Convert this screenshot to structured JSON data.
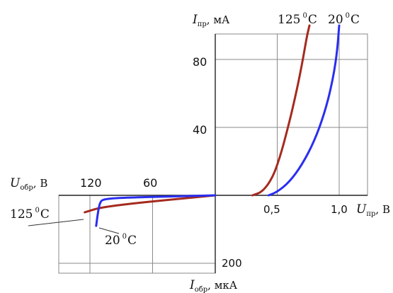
{
  "chart_data": {
    "type": "line",
    "subtype": "diode I–V characteristic (forward and reverse branches)",
    "grid": true,
    "colors": {
      "hot": "#a52a1e",
      "cold": "#2a2ef0",
      "axis": "#222222",
      "grid": "#8a8a8a",
      "leader": "#333333"
    },
    "labels": {
      "i_fwd_letter": "I",
      "i_fwd_sub": "пр",
      "i_fwd_unit": ", мА",
      "u_fwd_letter": "U",
      "u_fwd_sub": "пр",
      "u_fwd_unit": ", В",
      "u_rev_letter": "U",
      "u_rev_sub": "обр",
      "u_rev_unit": ", В",
      "i_rev_letter": "I",
      "i_rev_sub": "обр",
      "i_rev_unit": ", мкА",
      "temp_125": "125",
      "temp_20": "20",
      "degree_sup": "0",
      "celsius": "C"
    },
    "ticks": {
      "forward_current": [
        "80",
        "40"
      ],
      "forward_voltage": [
        "0,5",
        "1,0"
      ],
      "reverse_voltage": [
        "120",
        "60"
      ],
      "reverse_current": [
        "200"
      ]
    },
    "forward": {
      "x_unit": "В",
      "y_unit": "мА",
      "xlim": [
        0,
        1.2
      ],
      "ylim": [
        0,
        100
      ],
      "series": [
        {
          "name": "125 0C",
          "color": "#a52a1e",
          "points": [
            [
              0.3,
              0
            ],
            [
              0.38,
              2
            ],
            [
              0.46,
              10
            ],
            [
              0.52,
              22
            ],
            [
              0.58,
              38
            ],
            [
              0.64,
              56
            ],
            [
              0.7,
              77
            ],
            [
              0.74,
              94
            ],
            [
              0.76,
              100
            ]
          ]
        },
        {
          "name": "20 0C",
          "color": "#2a2ef0",
          "points": [
            [
              0.43,
              0
            ],
            [
              0.5,
              2
            ],
            [
              0.6,
              8
            ],
            [
              0.7,
              18
            ],
            [
              0.8,
              32
            ],
            [
              0.88,
              48
            ],
            [
              0.94,
              65
            ],
            [
              0.98,
              82
            ],
            [
              1.0,
              100
            ]
          ]
        }
      ]
    },
    "reverse": {
      "x_unit": "В",
      "y_unit": "мкА",
      "xlim": [
        0,
        140
      ],
      "ylim": [
        0,
        200
      ],
      "series": [
        {
          "name": "125 0C",
          "color": "#a52a1e",
          "points": [
            [
              0,
              0
            ],
            [
              40,
              12
            ],
            [
              80,
              24
            ],
            [
              110,
              36
            ],
            [
              122,
              47
            ],
            [
              125,
              50
            ]
          ]
        },
        {
          "name": "20 0C",
          "color": "#2a2ef0",
          "points": [
            [
              0,
              0
            ],
            [
              40,
              3
            ],
            [
              80,
              6
            ],
            [
              100,
              9
            ],
            [
              108,
              13
            ],
            [
              110,
              20
            ],
            [
              111,
              30
            ],
            [
              112,
              45
            ],
            [
              113,
              65
            ],
            [
              114,
              90
            ]
          ]
        }
      ]
    }
  }
}
